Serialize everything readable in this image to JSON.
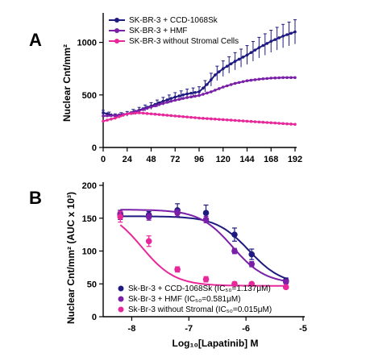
{
  "colors": {
    "navy": "#1f1a80",
    "purple": "#7a1fa8",
    "pink": "#e8279a"
  },
  "chart_data": [
    {
      "panel": "A",
      "type": "line",
      "xlabel": "",
      "ylabel": "Nuclear Cnt/mm²",
      "xlim": [
        0,
        192
      ],
      "ylim": [
        0,
        1250
      ],
      "xticks": [
        0,
        24,
        48,
        72,
        96,
        120,
        144,
        168,
        192
      ],
      "yticks": [
        0,
        500,
        1000
      ],
      "legend_position": "top-left",
      "series": [
        {
          "name": "SK-BR-3 + CCD-1068Sk",
          "color_key": "navy",
          "marker": "circle",
          "error_bars": true,
          "x": [
            0,
            12,
            24,
            36,
            48,
            60,
            72,
            84,
            96,
            104,
            112,
            120,
            132,
            144,
            156,
            168,
            180,
            192
          ],
          "y": [
            330,
            300,
            320,
            355,
            395,
            440,
            480,
            510,
            530,
            600,
            690,
            750,
            820,
            880,
            950,
            1010,
            1060,
            1100
          ]
        },
        {
          "name": "SK-BR-3 + HMF",
          "color_key": "purple",
          "marker": "circle",
          "error_bars": false,
          "x": [
            0,
            12,
            24,
            36,
            48,
            60,
            72,
            84,
            96,
            108,
            120,
            132,
            144,
            156,
            168,
            180,
            192
          ],
          "y": [
            300,
            305,
            320,
            350,
            385,
            420,
            450,
            475,
            495,
            530,
            575,
            610,
            635,
            650,
            660,
            665,
            665
          ]
        },
        {
          "name": "SK-BR-3 without Stromal Cells",
          "color_key": "pink",
          "marker": "circle",
          "error_bars": false,
          "x": [
            0,
            12,
            24,
            36,
            48,
            60,
            72,
            84,
            96,
            120,
            144,
            168,
            192
          ],
          "y": [
            250,
            280,
            320,
            330,
            320,
            310,
            300,
            290,
            280,
            265,
            250,
            235,
            220
          ]
        }
      ]
    },
    {
      "panel": "B",
      "type": "scatter",
      "xlabel": "Log₁₀[Lapatinib] M",
      "ylabel": "Nuclear Cnt/mm² (AUC x 10³)",
      "xlim": [
        -8.5,
        -5
      ],
      "ylim": [
        0,
        200
      ],
      "xticks": [
        -8,
        -7,
        -6,
        -5
      ],
      "yticks": [
        0,
        50,
        100,
        150,
        200
      ],
      "legend_position": "bottom-left",
      "fit_curves": true,
      "series": [
        {
          "name": "Sk-Br-3 + CCD-1068Sk (IC₅₀=1.137μM)",
          "color_key": "navy",
          "ic50_log": -5.944,
          "top": 153,
          "bottom": 48,
          "hill": 1.5,
          "x": [
            -8.2,
            -7.7,
            -7.2,
            -6.7,
            -6.2,
            -5.9,
            -5.3
          ],
          "y": [
            155,
            155,
            162,
            158,
            125,
            95,
            55
          ],
          "err": [
            7,
            5,
            10,
            12,
            10,
            8,
            4
          ]
        },
        {
          "name": "Sk-Br-3 + HMF (IC₅₀=0.581μM)",
          "color_key": "purple",
          "ic50_log": -6.236,
          "top": 163,
          "bottom": 50,
          "hill": 1.5,
          "x": [
            -8.2,
            -7.7,
            -7.2,
            -6.7,
            -6.2,
            -5.9,
            -5.3
          ],
          "y": [
            157,
            152,
            158,
            148,
            100,
            80,
            53
          ],
          "err": [
            5,
            5,
            5,
            5,
            4,
            4,
            3
          ]
        },
        {
          "name": "Sk-Br-3 without Stromal (IC₅₀=0.015μM)",
          "color_key": "pink",
          "ic50_log": -7.824,
          "top": 165,
          "bottom": 47,
          "hill": 1.5,
          "x": [
            -8.2,
            -7.7,
            -7.2,
            -6.7,
            -6.2,
            -5.9,
            -5.3
          ],
          "y": [
            152,
            115,
            72,
            57,
            50,
            50,
            45
          ],
          "err": [
            8,
            8,
            4,
            4,
            3,
            2,
            2
          ]
        }
      ]
    }
  ]
}
